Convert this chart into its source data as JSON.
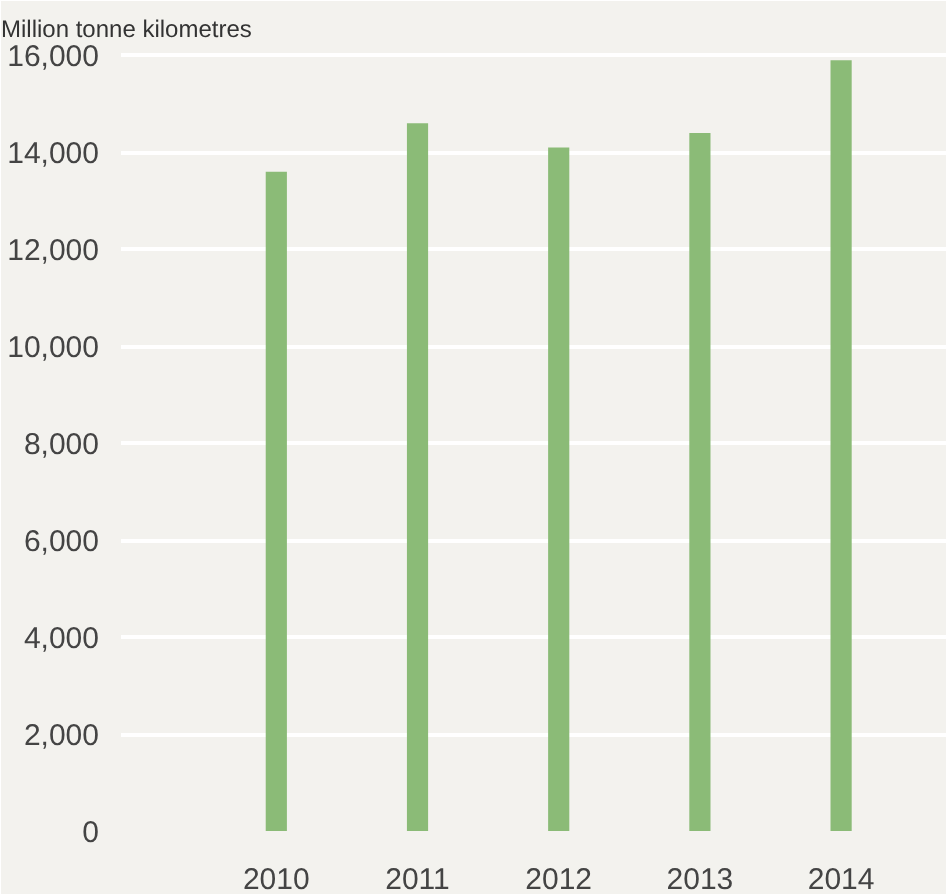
{
  "chart_data": {
    "type": "bar",
    "ylabel": "Million tonne kilometres",
    "categories": [
      "2010",
      "2011",
      "2012",
      "2013",
      "2014"
    ],
    "values": [
      13600,
      14600,
      14100,
      14400,
      15900
    ],
    "color": "#8bbb77",
    "ylim": [
      0,
      16000
    ],
    "yticks": [
      {
        "value": 0,
        "label": "0"
      },
      {
        "value": 2000,
        "label": "2,000"
      },
      {
        "value": 4000,
        "label": "4,000"
      },
      {
        "value": 6000,
        "label": "6,000"
      },
      {
        "value": 8000,
        "label": "8,000"
      },
      {
        "value": 10000,
        "label": "10,000"
      },
      {
        "value": 12000,
        "label": "12,000"
      },
      {
        "value": 14000,
        "label": "14,000"
      },
      {
        "value": 16000,
        "label": "16,000"
      }
    ],
    "grid": "y"
  }
}
